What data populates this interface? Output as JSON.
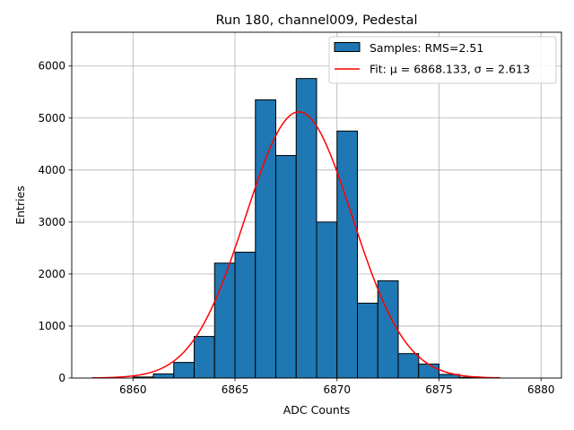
{
  "chart_data": {
    "type": "bar",
    "title": "Run 180, channel009, Pedestal",
    "xlabel": "ADC Counts",
    "ylabel": "Entries",
    "xlim": [
      6857.0,
      6881.0
    ],
    "ylim": [
      0,
      6650
    ],
    "grid": true,
    "legend_position": "top-right",
    "xticks": [
      6860,
      6865,
      6870,
      6875,
      6880
    ],
    "yticks": [
      0,
      1000,
      2000,
      3000,
      4000,
      5000,
      6000
    ],
    "bin_width": 1,
    "bins": [
      {
        "left": 6860,
        "value": 20
      },
      {
        "left": 6861,
        "value": 80
      },
      {
        "left": 6862,
        "value": 300
      },
      {
        "left": 6863,
        "value": 800
      },
      {
        "left": 6864,
        "value": 2210
      },
      {
        "left": 6865,
        "value": 2420
      },
      {
        "left": 6866,
        "value": 5350
      },
      {
        "left": 6867,
        "value": 4280
      },
      {
        "left": 6868,
        "value": 5760
      },
      {
        "left": 6869,
        "value": 3000
      },
      {
        "left": 6870,
        "value": 4750
      },
      {
        "left": 6871,
        "value": 1440
      },
      {
        "left": 6872,
        "value": 1870
      },
      {
        "left": 6873,
        "value": 470
      },
      {
        "left": 6874,
        "value": 270
      },
      {
        "left": 6875,
        "value": 70
      },
      {
        "left": 6876,
        "value": 15
      }
    ],
    "fit": {
      "type": "gaussian",
      "mu": 6868.133,
      "sigma": 2.613,
      "amplitude": 5120,
      "x_range": [
        6858,
        6878
      ]
    },
    "series": [
      {
        "name": "Samples: RMS=2.51",
        "color": "#1f77b4",
        "edgecolor": "#000000"
      },
      {
        "name": "Fit: μ = 6868.133, σ = 2.613",
        "color": "#ff0000"
      }
    ]
  }
}
